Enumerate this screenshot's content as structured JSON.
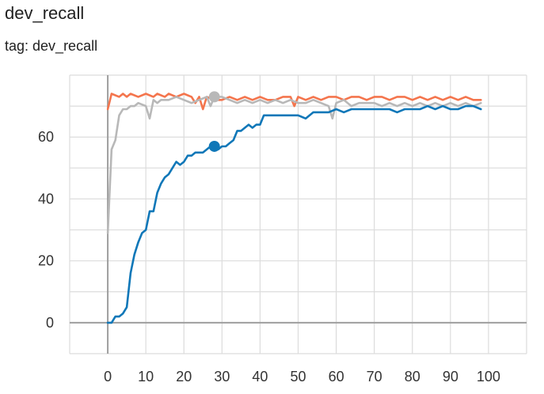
{
  "card": {
    "title": "dev_recall",
    "tag_prefix": "tag: ",
    "tag": "dev_recall"
  },
  "chart_data": {
    "type": "line",
    "title": "dev_recall",
    "xlabel": "",
    "ylabel": "",
    "xlim": [
      -10,
      110
    ],
    "ylim": [
      -10,
      80
    ],
    "x_ticks": [
      0,
      10,
      20,
      30,
      40,
      50,
      60,
      70,
      80,
      90,
      100
    ],
    "y_ticks": [
      0,
      20,
      40,
      60
    ],
    "grid": true,
    "series": [
      {
        "color": "#f4754d",
        "points": [
          [
            0,
            69
          ],
          [
            1,
            74
          ],
          [
            3,
            73
          ],
          [
            4,
            74
          ],
          [
            5,
            73
          ],
          [
            6,
            74
          ],
          [
            8,
            73
          ],
          [
            10,
            74
          ],
          [
            12,
            73
          ],
          [
            13,
            74
          ],
          [
            15,
            73
          ],
          [
            16,
            74
          ],
          [
            18,
            73
          ],
          [
            20,
            74
          ],
          [
            22,
            73
          ],
          [
            23,
            71
          ],
          [
            24,
            73
          ],
          [
            25,
            69
          ],
          [
            26,
            73
          ],
          [
            28,
            72
          ],
          [
            30,
            72
          ],
          [
            32,
            73
          ],
          [
            34,
            72
          ],
          [
            36,
            73
          ],
          [
            38,
            72
          ],
          [
            40,
            73
          ],
          [
            42,
            72
          ],
          [
            44,
            72
          ],
          [
            46,
            73
          ],
          [
            48,
            73
          ],
          [
            49,
            70
          ],
          [
            50,
            73
          ],
          [
            52,
            72
          ],
          [
            54,
            73
          ],
          [
            56,
            72
          ],
          [
            58,
            73
          ],
          [
            60,
            73
          ],
          [
            62,
            72
          ],
          [
            64,
            73
          ],
          [
            66,
            73
          ],
          [
            68,
            72
          ],
          [
            70,
            73
          ],
          [
            72,
            73
          ],
          [
            74,
            72
          ],
          [
            76,
            73
          ],
          [
            78,
            73
          ],
          [
            80,
            72
          ],
          [
            82,
            73
          ],
          [
            84,
            72
          ],
          [
            86,
            73
          ],
          [
            88,
            72
          ],
          [
            90,
            73
          ],
          [
            92,
            72
          ],
          [
            94,
            73
          ],
          [
            96,
            72
          ],
          [
            98,
            72
          ]
        ]
      },
      {
        "color": "#b8b8b8",
        "points": [
          [
            0,
            29
          ],
          [
            1,
            56
          ],
          [
            2,
            59
          ],
          [
            3,
            67
          ],
          [
            4,
            69
          ],
          [
            5,
            69
          ],
          [
            6,
            70
          ],
          [
            7,
            70
          ],
          [
            8,
            71
          ],
          [
            10,
            70
          ],
          [
            11,
            66
          ],
          [
            12,
            72
          ],
          [
            13,
            71
          ],
          [
            14,
            72
          ],
          [
            16,
            72
          ],
          [
            18,
            73
          ],
          [
            20,
            72
          ],
          [
            22,
            71
          ],
          [
            24,
            72
          ],
          [
            26,
            73
          ],
          [
            27,
            70
          ],
          [
            28,
            73
          ],
          [
            30,
            73
          ],
          [
            32,
            72
          ],
          [
            34,
            71
          ],
          [
            36,
            72
          ],
          [
            38,
            71
          ],
          [
            40,
            72
          ],
          [
            42,
            71
          ],
          [
            44,
            72
          ],
          [
            46,
            71
          ],
          [
            48,
            72
          ],
          [
            50,
            71
          ],
          [
            52,
            71
          ],
          [
            54,
            72
          ],
          [
            56,
            71
          ],
          [
            58,
            70
          ],
          [
            59,
            66
          ],
          [
            60,
            71
          ],
          [
            62,
            72
          ],
          [
            64,
            70
          ],
          [
            66,
            71
          ],
          [
            68,
            71
          ],
          [
            70,
            71
          ],
          [
            72,
            70
          ],
          [
            74,
            71
          ],
          [
            76,
            70
          ],
          [
            78,
            71
          ],
          [
            80,
            70
          ],
          [
            82,
            71
          ],
          [
            84,
            70
          ],
          [
            86,
            71
          ],
          [
            88,
            70
          ],
          [
            90,
            71
          ],
          [
            92,
            70
          ],
          [
            94,
            71
          ],
          [
            96,
            70
          ],
          [
            98,
            71
          ]
        ]
      },
      {
        "color": "#0f77b8",
        "points": [
          [
            0,
            0
          ],
          [
            1,
            0
          ],
          [
            2,
            2
          ],
          [
            3,
            2
          ],
          [
            4,
            3
          ],
          [
            5,
            5
          ],
          [
            6,
            16
          ],
          [
            7,
            22
          ],
          [
            8,
            26
          ],
          [
            9,
            29
          ],
          [
            10,
            30
          ],
          [
            11,
            36
          ],
          [
            12,
            36
          ],
          [
            13,
            42
          ],
          [
            14,
            45
          ],
          [
            15,
            47
          ],
          [
            16,
            48
          ],
          [
            17,
            50
          ],
          [
            18,
            52
          ],
          [
            19,
            51
          ],
          [
            20,
            52
          ],
          [
            21,
            54
          ],
          [
            22,
            54
          ],
          [
            23,
            55
          ],
          [
            24,
            55
          ],
          [
            25,
            55
          ],
          [
            26,
            56
          ],
          [
            27,
            57
          ],
          [
            28,
            57
          ],
          [
            29,
            56
          ],
          [
            30,
            57
          ],
          [
            31,
            57
          ],
          [
            32,
            58
          ],
          [
            33,
            59
          ],
          [
            34,
            62
          ],
          [
            35,
            62
          ],
          [
            36,
            63
          ],
          [
            37,
            64
          ],
          [
            38,
            63
          ],
          [
            39,
            64
          ],
          [
            40,
            64
          ],
          [
            41,
            67
          ],
          [
            42,
            67
          ],
          [
            43,
            67
          ],
          [
            44,
            67
          ],
          [
            46,
            67
          ],
          [
            48,
            67
          ],
          [
            50,
            67
          ],
          [
            52,
            66
          ],
          [
            54,
            68
          ],
          [
            56,
            68
          ],
          [
            58,
            68
          ],
          [
            60,
            69
          ],
          [
            62,
            68
          ],
          [
            64,
            69
          ],
          [
            66,
            69
          ],
          [
            68,
            69
          ],
          [
            70,
            69
          ],
          [
            72,
            69
          ],
          [
            74,
            69
          ],
          [
            76,
            68
          ],
          [
            78,
            69
          ],
          [
            80,
            69
          ],
          [
            82,
            69
          ],
          [
            84,
            70
          ],
          [
            86,
            69
          ],
          [
            88,
            70
          ],
          [
            90,
            69
          ],
          [
            92,
            69
          ],
          [
            94,
            70
          ],
          [
            96,
            70
          ],
          [
            98,
            69
          ]
        ]
      }
    ],
    "markers": [
      {
        "series": 1,
        "x": 28,
        "y": 73
      },
      {
        "series": 2,
        "x": 28,
        "y": 57
      }
    ]
  }
}
